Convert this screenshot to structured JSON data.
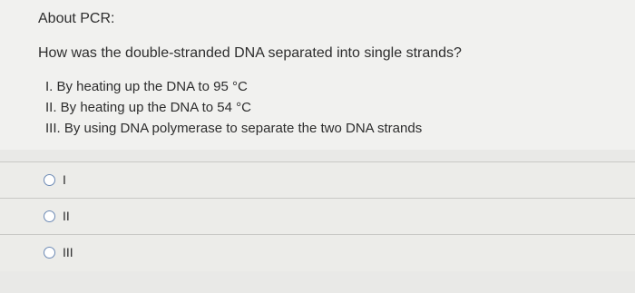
{
  "header": {
    "title": "About PCR:"
  },
  "question": "How was the double-stranded DNA separated into single strands?",
  "statements": [
    "I. By heating up the DNA to 95 °C",
    "II. By heating up the DNA to 54 °C",
    "III. By using DNA polymerase to separate the two DNA strands"
  ],
  "options": [
    "I",
    "II",
    "III"
  ]
}
